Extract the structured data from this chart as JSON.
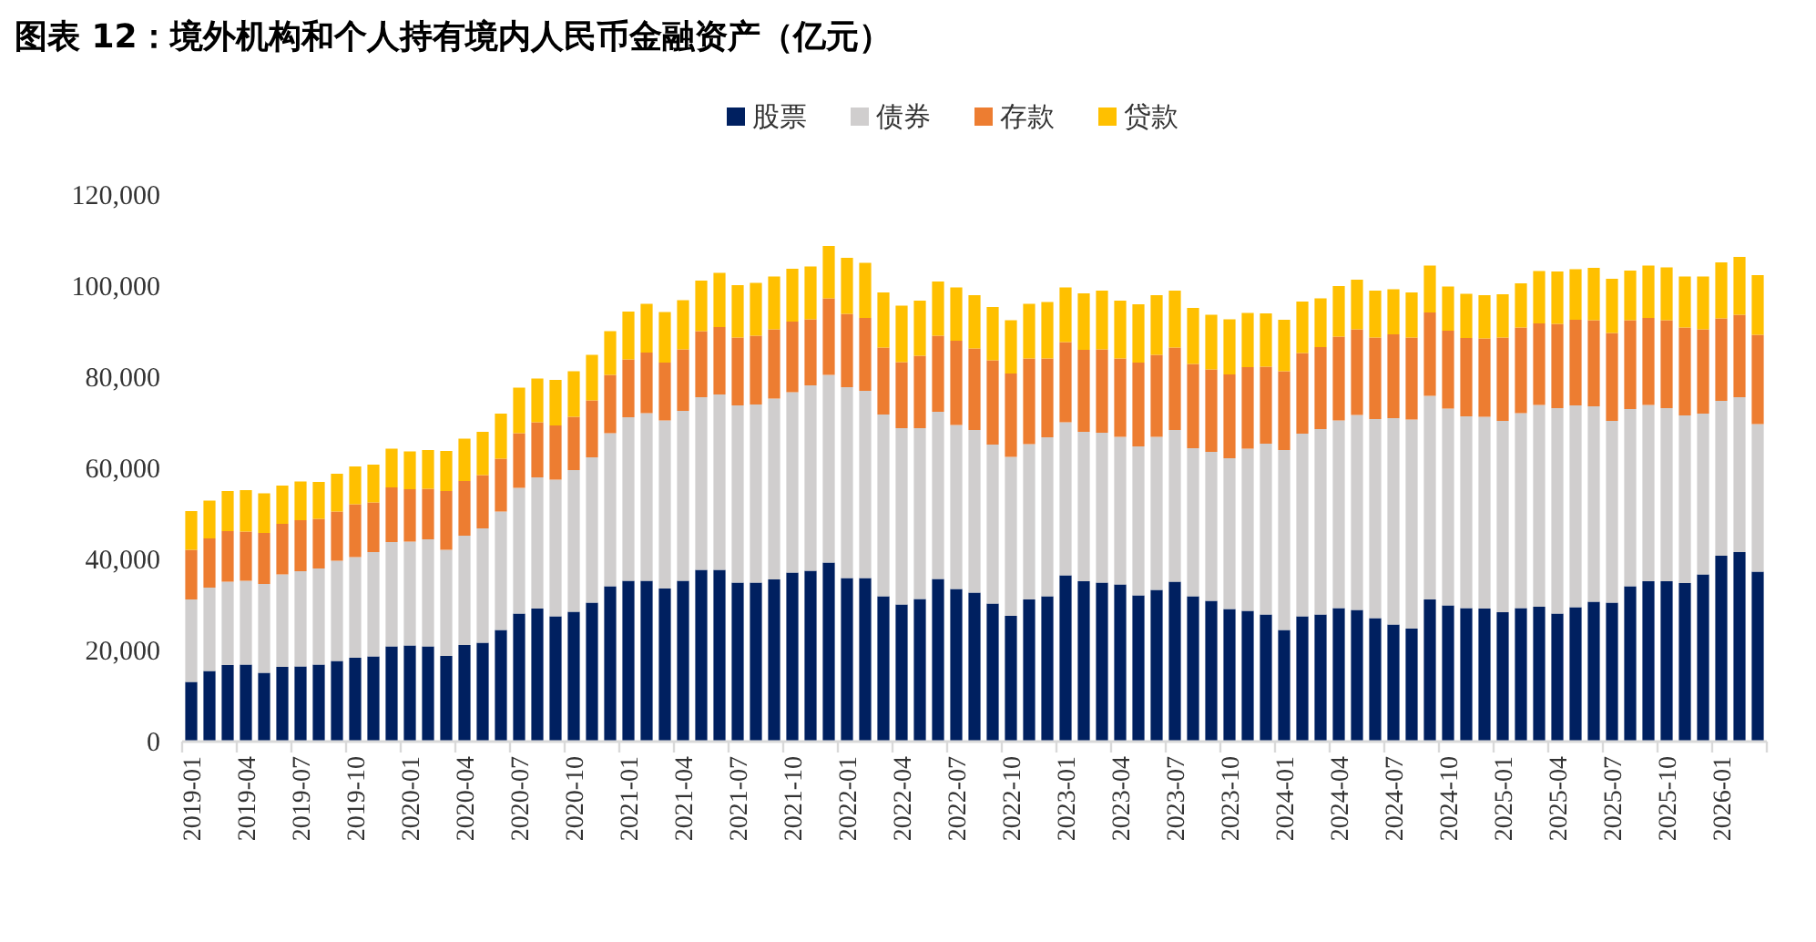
{
  "chart_data": {
    "type": "bar",
    "stacked": true,
    "title": "图表 12：境外机构和个人持有境内人民币金融资产（亿元）",
    "legend": "top",
    "categories": [
      "2019-01",
      null,
      null,
      "2019-04",
      null,
      null,
      "2019-07",
      null,
      null,
      "2019-10",
      null,
      null,
      "2020-01",
      null,
      null,
      "2020-04",
      null,
      null,
      "2020-07",
      null,
      null,
      "2020-10",
      null,
      null,
      "2021-01",
      null,
      null,
      "2021-04",
      null,
      null,
      "2021-07",
      null,
      null,
      "2021-10",
      null,
      null,
      "2022-01",
      null,
      null,
      "2022-04",
      null,
      null,
      "2022-07",
      null,
      null,
      "2022-10",
      null,
      null,
      "2023-01",
      null,
      null,
      "2023-04",
      null,
      null,
      "2023-07",
      null,
      null,
      "2023-10",
      null,
      null,
      "2024-01",
      null,
      null,
      "2024-04",
      null,
      null,
      "2024-07",
      null,
      null,
      "2024-10",
      null,
      null,
      "2025-01",
      null,
      null,
      "2025-04",
      null,
      null,
      "2025-07",
      null,
      null,
      "2025-10",
      null,
      null,
      "2026-01",
      null,
      null
    ],
    "ylim": [
      0,
      120000
    ],
    "yticks": [
      {
        "value": 0,
        "label": "0"
      },
      {
        "value": 20000,
        "label": "20,000"
      },
      {
        "value": 40000,
        "label": "40,000"
      },
      {
        "value": 60000,
        "label": "60,000"
      },
      {
        "value": 80000,
        "label": "80,000"
      },
      {
        "value": 100000,
        "label": "100,000"
      },
      {
        "value": 120000,
        "label": "120,000"
      }
    ],
    "series": [
      {
        "name": "股票",
        "color": "#002060",
        "values": [
          13100,
          15500,
          16800,
          16900,
          15100,
          16400,
          16500,
          16900,
          17700,
          18400,
          18700,
          20900,
          21100,
          20900,
          18800,
          21200,
          21700,
          24500,
          28100,
          29200,
          27500,
          28500,
          30500,
          34100,
          35300,
          35300,
          33600,
          35300,
          37700,
          37700,
          34900,
          34900,
          35600,
          37100,
          37500,
          39300,
          35900,
          35900,
          31900,
          30100,
          31300,
          35700,
          33500,
          32700,
          30300,
          27600,
          31200,
          31900,
          36500,
          35200,
          34900,
          34500,
          32100,
          33300,
          35100,
          31900,
          30900,
          29100,
          28700,
          27900,
          24500,
          27500,
          27900,
          29300,
          28900,
          27100,
          25700,
          24800,
          31200,
          29900,
          29300,
          29200,
          28400,
          29300,
          29600,
          28100,
          29500,
          30700,
          30500,
          34100,
          35200,
          35200,
          34800,
          36700,
          40800,
          41600,
          37300
        ]
      },
      {
        "name": "债券",
        "color": "#d0cece",
        "values": [
          18100,
          18300,
          18300,
          18400,
          19500,
          20300,
          20900,
          21100,
          22000,
          22100,
          22900,
          22900,
          22800,
          23500,
          23300,
          24000,
          25100,
          26000,
          27600,
          28800,
          30000,
          31100,
          31900,
          33600,
          35900,
          36800,
          36900,
          37300,
          37900,
          38500,
          38900,
          39100,
          39700,
          39600,
          40700,
          41200,
          41900,
          41100,
          39900,
          38700,
          37500,
          36700,
          36000,
          35700,
          34900,
          34900,
          34100,
          34900,
          33600,
          32800,
          32900,
          32400,
          32700,
          33600,
          33300,
          32500,
          32700,
          33100,
          35600,
          37500,
          39500,
          40100,
          40700,
          41200,
          42800,
          43700,
          45300,
          45900,
          44700,
          43200,
          42100,
          42100,
          42000,
          42800,
          44300,
          45100,
          44300,
          42900,
          39900,
          38900,
          38700,
          38000,
          36800,
          35300,
          34000,
          34000,
          32400
        ]
      },
      {
        "name": "存款",
        "color": "#ed7d31",
        "values": [
          10900,
          10800,
          11100,
          10800,
          11200,
          11100,
          11200,
          10900,
          10800,
          11600,
          10900,
          12000,
          11500,
          11100,
          12900,
          12000,
          11700,
          11600,
          12000,
          12100,
          11900,
          11700,
          12500,
          12800,
          12700,
          13300,
          12700,
          13500,
          14500,
          14800,
          14900,
          15100,
          15200,
          15500,
          14500,
          16800,
          16100,
          16000,
          14700,
          14500,
          15900,
          16700,
          18500,
          17900,
          18500,
          18300,
          18800,
          17300,
          17600,
          18000,
          18300,
          17200,
          18400,
          18000,
          18100,
          18500,
          18100,
          18400,
          17900,
          16900,
          17300,
          17700,
          18000,
          18400,
          18800,
          17900,
          18400,
          18000,
          18300,
          17100,
          17200,
          17200,
          18300,
          18800,
          17900,
          18500,
          18800,
          18900,
          19300,
          19500,
          19100,
          19300,
          19300,
          18500,
          18100,
          18100,
          19600
        ]
      },
      {
        "name": "贷款",
        "color": "#ffc000",
        "values": [
          8500,
          8300,
          8800,
          9100,
          8700,
          8400,
          8500,
          8100,
          8300,
          8300,
          8300,
          8500,
          8300,
          8500,
          8800,
          9300,
          9500,
          9900,
          10000,
          9600,
          10000,
          10000,
          10000,
          9600,
          10500,
          10700,
          11100,
          10800,
          11100,
          11900,
          11500,
          11600,
          11600,
          11600,
          11600,
          11500,
          12300,
          12100,
          12100,
          12400,
          12100,
          11900,
          11700,
          11700,
          11700,
          11700,
          12000,
          12400,
          12000,
          12400,
          12900,
          12700,
          12800,
          13100,
          12500,
          12300,
          12000,
          12100,
          11900,
          11700,
          11300,
          11300,
          10700,
          11100,
          10900,
          10300,
          9900,
          9900,
          10300,
          9700,
          9700,
          9500,
          9500,
          9700,
          11500,
          11500,
          11100,
          11500,
          11900,
          10900,
          11500,
          11600,
          11200,
          11600,
          12300,
          12700,
          13100
        ]
      }
    ]
  }
}
